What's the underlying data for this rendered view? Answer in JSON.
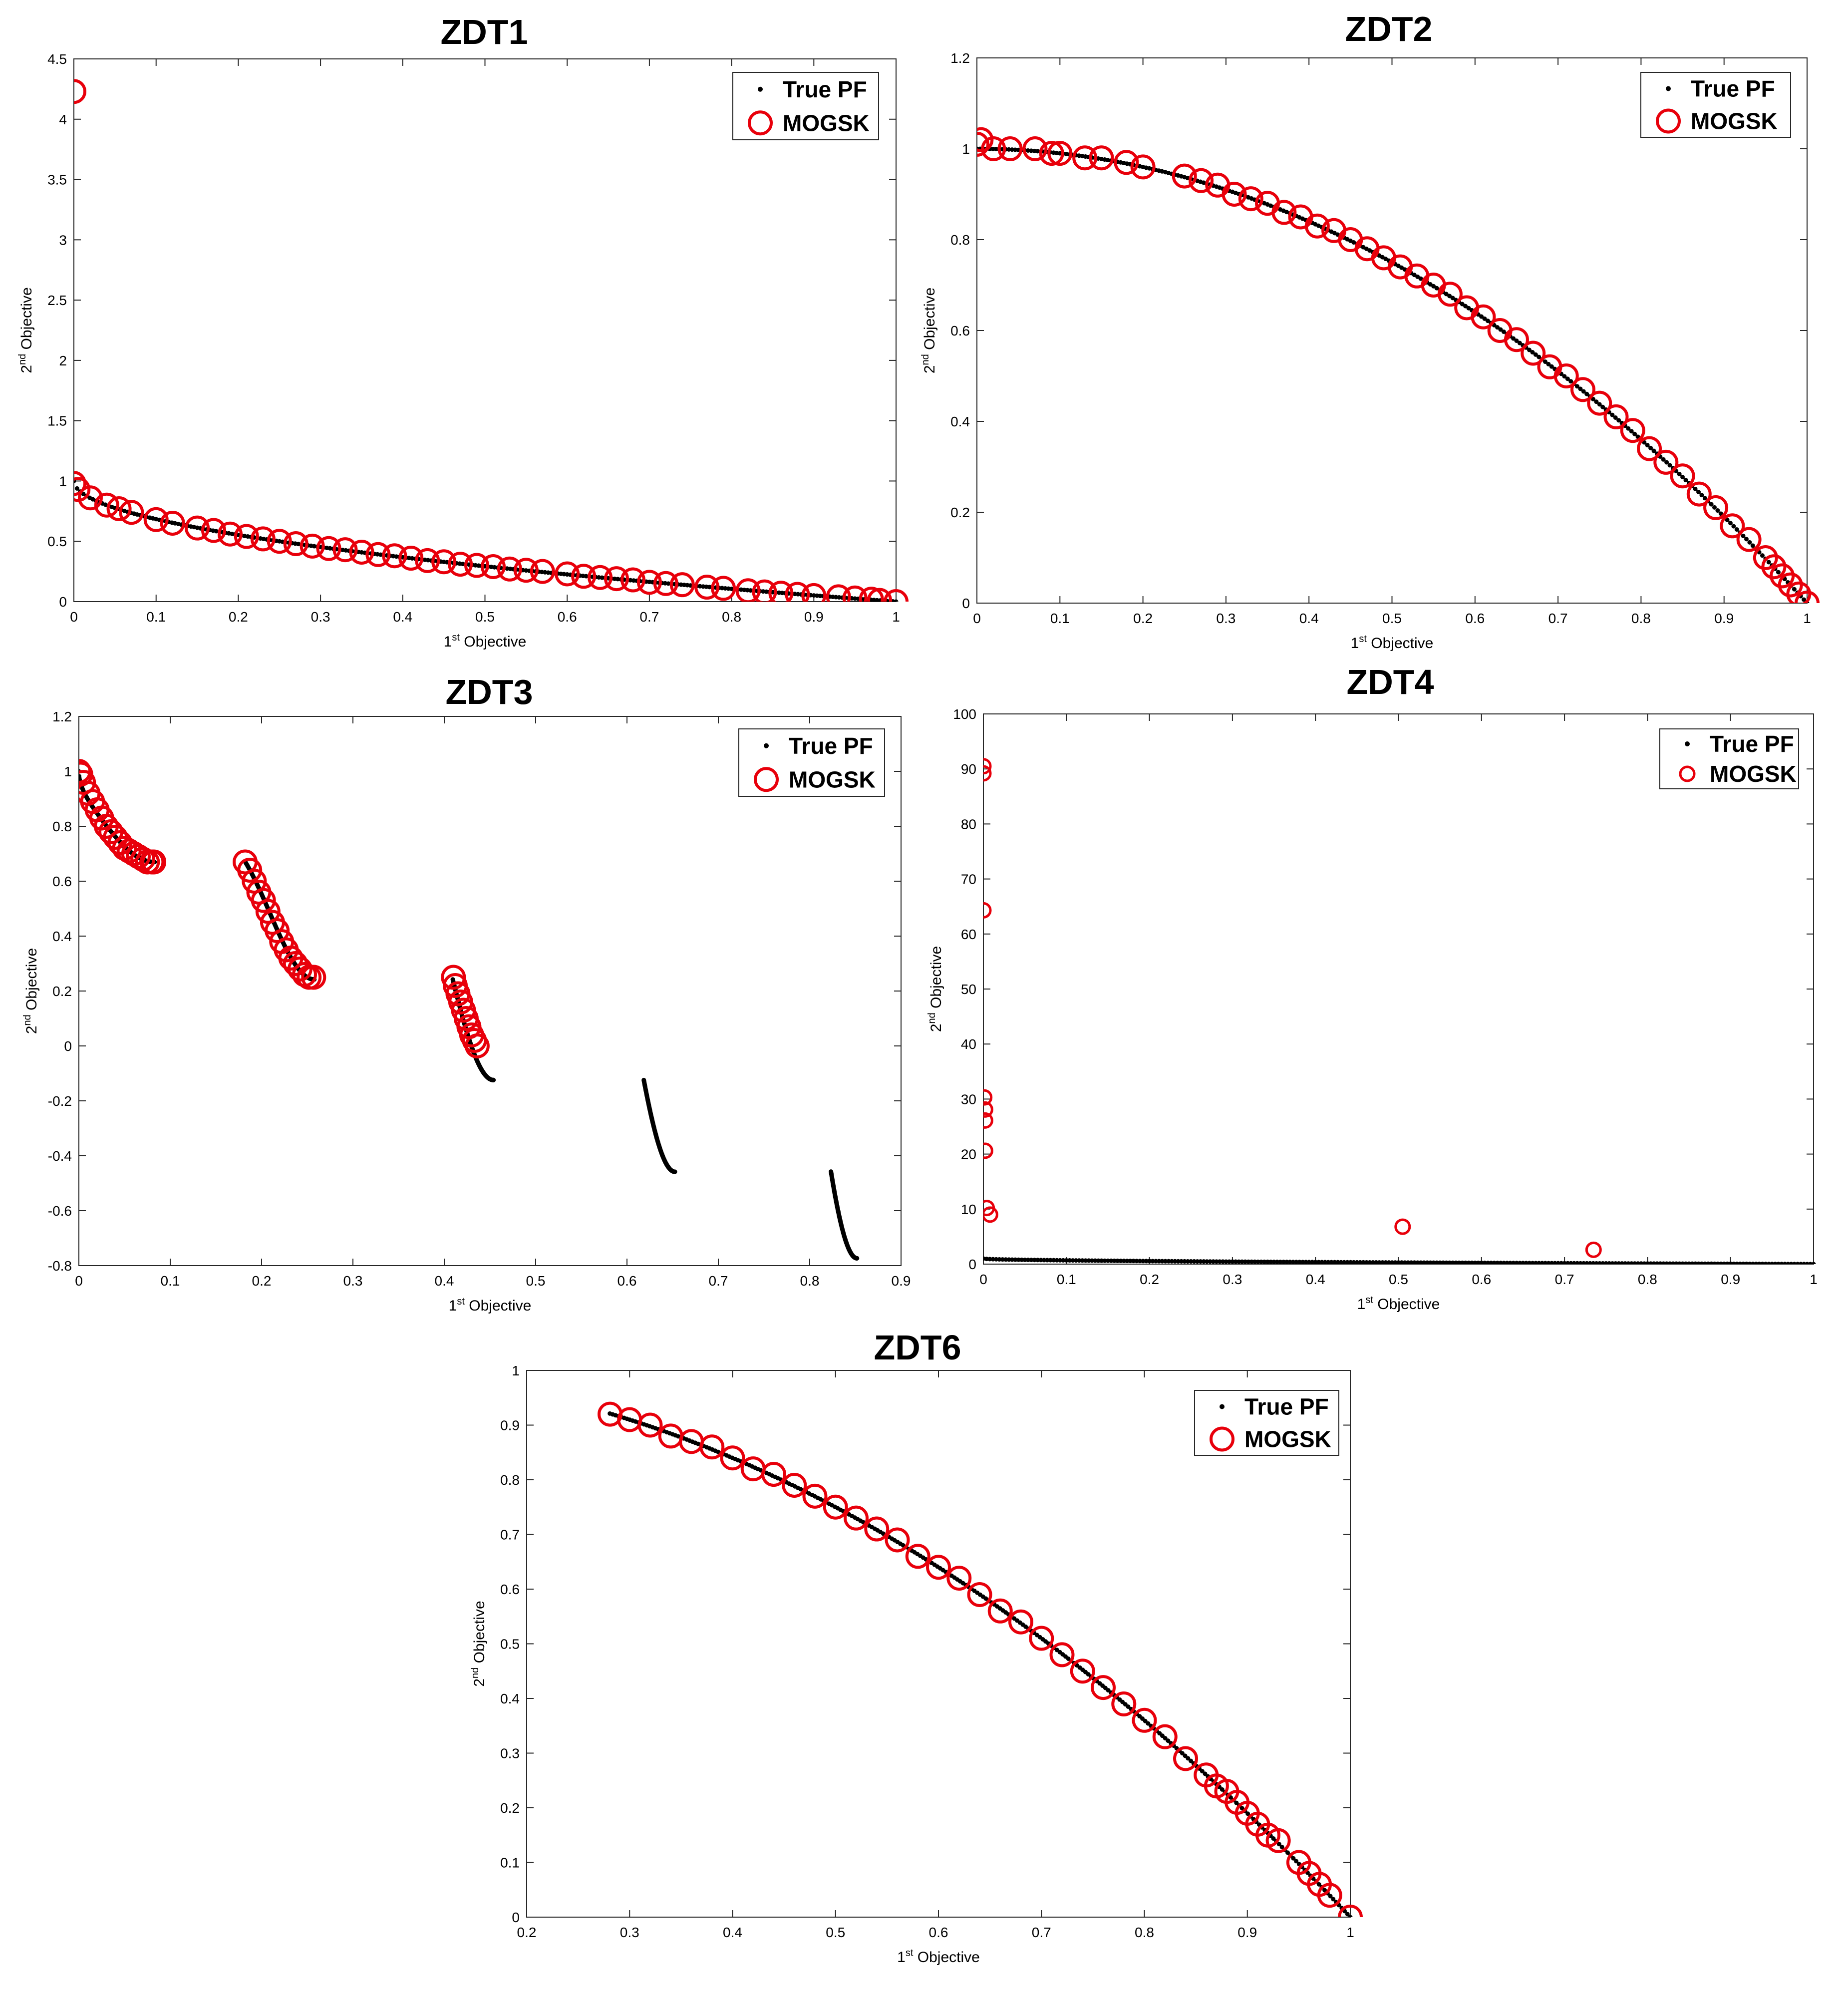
{
  "figure": {
    "x_axis": {
      "superscript": "st",
      "prefix": "1",
      "suffix": " Objective"
    },
    "y_axis": {
      "superscript": "nd",
      "prefix": "2",
      "suffix": " Objective"
    },
    "legend": [
      "True PF",
      "MOGSK"
    ],
    "colors": {
      "true_pf": "#000000",
      "mogsk": "#e8000b",
      "axes": "#262626"
    }
  },
  "chart_data": [
    {
      "type": "scatter",
      "title": "ZDT1",
      "xlabel": "1st Objective",
      "ylabel": "2nd Objective",
      "xlim": [
        0,
        1
      ],
      "ylim": [
        0,
        4.5
      ],
      "xticks": [
        "0",
        "0.1",
        "0.2",
        "0.3",
        "0.4",
        "0.5",
        "0.6",
        "0.7",
        "0.8",
        "0.9",
        "1"
      ],
      "yticks": [
        "0",
        "0.5",
        "1",
        "1.5",
        "2",
        "2.5",
        "3",
        "3.5",
        "4",
        "4.5"
      ],
      "legend_position": "top-right",
      "series": [
        {
          "name": "True PF",
          "marker": "dot",
          "curve": "1 - sqrt(x)",
          "x_range": [
            0,
            1
          ]
        },
        {
          "name": "MOGSK",
          "marker": "circle",
          "x": [
            0,
            0,
            0.005,
            0.02,
            0.04,
            0.055,
            0.07,
            0.1,
            0.12,
            0.15,
            0.17,
            0.19,
            0.21,
            0.23,
            0.25,
            0.27,
            0.29,
            0.31,
            0.33,
            0.35,
            0.37,
            0.39,
            0.41,
            0.43,
            0.45,
            0.47,
            0.49,
            0.51,
            0.53,
            0.55,
            0.57,
            0.6,
            0.62,
            0.64,
            0.66,
            0.68,
            0.7,
            0.72,
            0.74,
            0.77,
            0.79,
            0.82,
            0.84,
            0.86,
            0.88,
            0.9,
            0.93,
            0.95,
            0.97,
            0.98,
            1.0
          ],
          "y": [
            4.23,
            0.98,
            0.93,
            0.86,
            0.8,
            0.77,
            0.74,
            0.68,
            0.65,
            0.61,
            0.59,
            0.56,
            0.54,
            0.52,
            0.5,
            0.48,
            0.46,
            0.44,
            0.43,
            0.41,
            0.39,
            0.38,
            0.36,
            0.34,
            0.33,
            0.31,
            0.3,
            0.29,
            0.27,
            0.26,
            0.25,
            0.23,
            0.21,
            0.2,
            0.19,
            0.18,
            0.16,
            0.15,
            0.14,
            0.12,
            0.11,
            0.09,
            0.08,
            0.07,
            0.06,
            0.05,
            0.04,
            0.03,
            0.02,
            0.01,
            0.0
          ]
        }
      ]
    },
    {
      "type": "scatter",
      "title": "ZDT2",
      "xlabel": "1st Objective",
      "ylabel": "2nd Objective",
      "xlim": [
        0,
        1
      ],
      "ylim": [
        0,
        1.2
      ],
      "xticks": [
        "0",
        "0.1",
        "0.2",
        "0.3",
        "0.4",
        "0.5",
        "0.6",
        "0.7",
        "0.8",
        "0.9",
        "1"
      ],
      "yticks": [
        "0",
        "0.2",
        "0.4",
        "0.6",
        "0.8",
        "1",
        "1.2"
      ],
      "legend_position": "top-right",
      "series": [
        {
          "name": "True PF",
          "marker": "dot",
          "curve": "1 - x^2",
          "x_range": [
            0,
            1
          ]
        },
        {
          "name": "MOGSK",
          "marker": "circle",
          "x": [
            0,
            0.005,
            0.02,
            0.04,
            0.07,
            0.09,
            0.1,
            0.13,
            0.15,
            0.18,
            0.2,
            0.25,
            0.27,
            0.29,
            0.31,
            0.33,
            0.35,
            0.37,
            0.39,
            0.41,
            0.43,
            0.45,
            0.47,
            0.49,
            0.51,
            0.53,
            0.55,
            0.57,
            0.59,
            0.61,
            0.63,
            0.65,
            0.67,
            0.69,
            0.71,
            0.73,
            0.75,
            0.77,
            0.79,
            0.81,
            0.83,
            0.85,
            0.87,
            0.89,
            0.91,
            0.93,
            0.95,
            0.96,
            0.97,
            0.98,
            0.99,
            1.0
          ],
          "y": [
            1.01,
            1.02,
            1.0,
            1.0,
            1.0,
            0.99,
            0.99,
            0.98,
            0.98,
            0.97,
            0.96,
            0.94,
            0.93,
            0.92,
            0.9,
            0.89,
            0.88,
            0.86,
            0.85,
            0.83,
            0.82,
            0.8,
            0.78,
            0.76,
            0.74,
            0.72,
            0.7,
            0.68,
            0.65,
            0.63,
            0.6,
            0.58,
            0.55,
            0.52,
            0.5,
            0.47,
            0.44,
            0.41,
            0.38,
            0.34,
            0.31,
            0.28,
            0.24,
            0.21,
            0.17,
            0.14,
            0.1,
            0.08,
            0.06,
            0.04,
            0.02,
            0.0
          ]
        }
      ]
    },
    {
      "type": "scatter",
      "title": "ZDT3",
      "xlabel": "1st Objective",
      "ylabel": "2nd Objective",
      "xlim": [
        0,
        0.9
      ],
      "ylim": [
        -0.8,
        1.2
      ],
      "xticks": [
        "0",
        "0.1",
        "0.2",
        "0.3",
        "0.4",
        "0.5",
        "0.6",
        "0.7",
        "0.8",
        "0.9"
      ],
      "yticks": [
        "-0.8",
        "-0.6",
        "-0.4",
        "-0.2",
        "0",
        "0.2",
        "0.4",
        "0.6",
        "0.8",
        "1",
        "1.2"
      ],
      "legend_position": "top-right",
      "series": [
        {
          "name": "True PF",
          "marker": "dot",
          "curve": "1 - sqrt(x) - x*sin(10*pi*x)",
          "x_ranges": [
            [
              0,
              0.083
            ],
            [
              0.1822,
              0.2578
            ],
            [
              0.4093,
              0.4539
            ],
            [
              0.6184,
              0.6525
            ],
            [
              0.8233,
              0.8518
            ]
          ]
        },
        {
          "name": "MOGSK",
          "marker": "circle",
          "x": [
            0,
            0.002,
            0.005,
            0.01,
            0.015,
            0.02,
            0.025,
            0.03,
            0.035,
            0.04,
            0.045,
            0.05,
            0.055,
            0.06,
            0.065,
            0.07,
            0.075,
            0.08,
            0.082,
            0.182,
            0.187,
            0.192,
            0.197,
            0.202,
            0.207,
            0.212,
            0.217,
            0.222,
            0.227,
            0.232,
            0.237,
            0.242,
            0.247,
            0.252,
            0.257,
            0.41,
            0.412,
            0.415,
            0.418,
            0.421,
            0.424,
            0.427,
            0.43,
            0.433,
            0.436
          ],
          "y": [
            1.0,
            0.99,
            0.96,
            0.92,
            0.89,
            0.86,
            0.83,
            0.8,
            0.78,
            0.76,
            0.74,
            0.72,
            0.71,
            0.7,
            0.69,
            0.68,
            0.67,
            0.67,
            0.67,
            0.67,
            0.64,
            0.6,
            0.56,
            0.53,
            0.49,
            0.45,
            0.42,
            0.38,
            0.35,
            0.32,
            0.3,
            0.28,
            0.26,
            0.25,
            0.25,
            0.25,
            0.22,
            0.19,
            0.16,
            0.13,
            0.1,
            0.07,
            0.04,
            0.02,
            0.0
          ]
        }
      ]
    },
    {
      "type": "scatter",
      "title": "ZDT4",
      "xlabel": "1st Objective",
      "ylabel": "2nd Objective",
      "xlim": [
        0,
        1
      ],
      "ylim": [
        0,
        100
      ],
      "xticks": [
        "0",
        "0.1",
        "0.2",
        "0.3",
        "0.4",
        "0.5",
        "0.6",
        "0.7",
        "0.8",
        "0.9",
        "1"
      ],
      "yticks": [
        "0",
        "10",
        "20",
        "30",
        "40",
        "50",
        "60",
        "70",
        "80",
        "90",
        "100"
      ],
      "legend_position": "top-right",
      "series": [
        {
          "name": "True PF",
          "marker": "dot",
          "curve": "1 - sqrt(x)",
          "x_range": [
            0,
            1
          ]
        },
        {
          "name": "MOGSK",
          "marker": "circle",
          "x": [
            0.0,
            0.0,
            0.0,
            0.001,
            0.002,
            0.002,
            0.002,
            0.004,
            0.008,
            0.505,
            0.735
          ],
          "y": [
            90.5,
            89.2,
            64.3,
            30.3,
            28.1,
            26.1,
            20.6,
            10.2,
            9.0,
            6.8,
            2.6
          ]
        }
      ]
    },
    {
      "type": "scatter",
      "title": "ZDT6",
      "xlabel": "1st Objective",
      "ylabel": "2nd Objective",
      "xlim": [
        0.2,
        1
      ],
      "ylim": [
        0,
        1
      ],
      "xticks": [
        "0.2",
        "0.3",
        "0.4",
        "0.5",
        "0.6",
        "0.7",
        "0.8",
        "0.9",
        "1"
      ],
      "yticks": [
        "0",
        "0.1",
        "0.2",
        "0.3",
        "0.4",
        "0.5",
        "0.6",
        "0.7",
        "0.8",
        "0.9",
        "1"
      ],
      "legend_position": "top-right",
      "series": [
        {
          "name": "True PF",
          "marker": "dot",
          "curve": "1 - x^2",
          "x_range": [
            0.2808,
            1
          ]
        },
        {
          "name": "MOGSK",
          "marker": "circle",
          "x": [
            0.281,
            0.3,
            0.32,
            0.34,
            0.36,
            0.38,
            0.4,
            0.42,
            0.44,
            0.46,
            0.48,
            0.5,
            0.52,
            0.54,
            0.56,
            0.58,
            0.6,
            0.62,
            0.64,
            0.66,
            0.68,
            0.7,
            0.72,
            0.74,
            0.76,
            0.78,
            0.8,
            0.82,
            0.84,
            0.86,
            0.87,
            0.88,
            0.89,
            0.9,
            0.91,
            0.92,
            0.93,
            0.95,
            0.96,
            0.97,
            0.98,
            1.0
          ],
          "y": [
            0.92,
            0.91,
            0.9,
            0.88,
            0.87,
            0.86,
            0.84,
            0.82,
            0.81,
            0.79,
            0.77,
            0.75,
            0.73,
            0.71,
            0.69,
            0.66,
            0.64,
            0.62,
            0.59,
            0.56,
            0.54,
            0.51,
            0.48,
            0.45,
            0.42,
            0.39,
            0.36,
            0.33,
            0.29,
            0.26,
            0.24,
            0.23,
            0.21,
            0.19,
            0.17,
            0.15,
            0.14,
            0.1,
            0.08,
            0.06,
            0.04,
            0.0
          ]
        }
      ]
    }
  ]
}
